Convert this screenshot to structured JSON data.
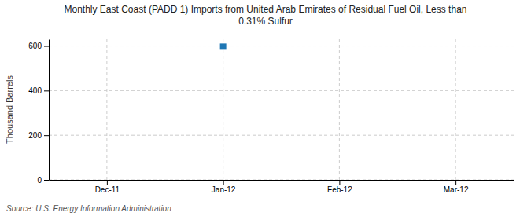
{
  "chart_data": {
    "type": "scatter",
    "title": "Monthly East Coast (PADD 1) Imports from United Arab Emirates of Residual Fuel Oil, Less than\n0.31% Sulfur",
    "ylabel": "Thousand Barrels",
    "source": "Source: U.S. Energy Information Administration",
    "categories": [
      "Dec-11",
      "Jan-12",
      "Feb-12",
      "Mar-12"
    ],
    "values": [
      null,
      597,
      null,
      null
    ],
    "marker": "square",
    "ylim": [
      0,
      630
    ],
    "yticks": [
      0,
      200,
      400,
      600
    ],
    "grid": true
  }
}
